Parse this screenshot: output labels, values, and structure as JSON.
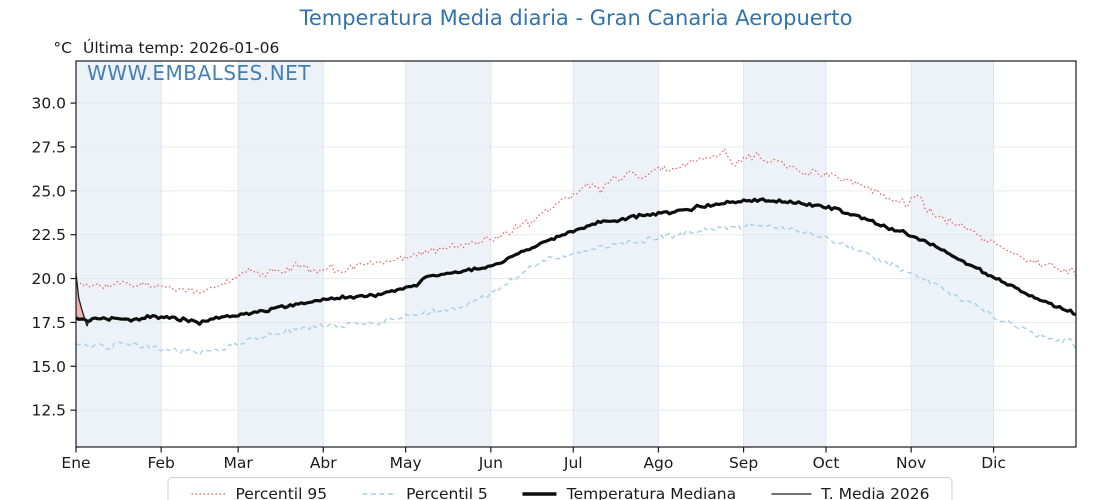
{
  "header": {
    "unit_label": "°C",
    "last_temp_label": "Última temp: 2026-01-06"
  },
  "watermark": "WWW.EMBALSES.NET",
  "colors": {
    "accent_blue": "#3174ad",
    "watermark_blue": "#3a79b4",
    "p95_red": "#e25555",
    "p5_blue": "#a9cfe5",
    "median_black": "#0d0d0d",
    "t2026_black": "#1f1f1f",
    "band_fill": "#edf2f9",
    "grid_horizontal": "#e6e8eb",
    "grid_vertical": "#dfe5ee",
    "frame": "#1a1a1a",
    "fill_above_median": "#efa3a6",
    "fill_below_median": "#5c7fa3",
    "legend_border": "#cfcfcf"
  },
  "chart_data": {
    "type": "line",
    "title": "Temperatura Media diaria - Gran Canaria Aeropuerto",
    "ylabel": "°C",
    "x_axis": {
      "months": [
        "Ene",
        "Feb",
        "Mar",
        "Abr",
        "May",
        "Jun",
        "Jul",
        "Ago",
        "Sep",
        "Oct",
        "Nov",
        "Dic"
      ],
      "days_in_month": [
        31,
        28,
        31,
        30,
        31,
        30,
        31,
        31,
        30,
        31,
        30,
        31
      ],
      "shaded_month_indices": [
        0,
        2,
        4,
        6,
        8,
        10
      ],
      "total_days": 365
    },
    "y_axis": {
      "ticks": [
        12.5,
        15.0,
        17.5,
        20.0,
        22.5,
        25.0,
        27.5,
        30.0
      ],
      "decimals": 1,
      "min": 10.4,
      "max": 32.4,
      "grid": true
    },
    "legend_position": "bottom-center",
    "series": [
      {
        "name": "Percentil 95",
        "color": "#e25555",
        "width": 1.2,
        "dash": "1.6 2.4",
        "opacity": 0.9,
        "noise": 0.28,
        "points": [
          [
            0,
            19.9
          ],
          [
            4,
            19.5
          ],
          [
            8,
            19.7
          ],
          [
            12,
            19.5
          ],
          [
            16,
            19.8
          ],
          [
            20,
            19.6
          ],
          [
            25,
            19.7
          ],
          [
            31,
            19.6
          ],
          [
            38,
            19.4
          ],
          [
            45,
            19.2
          ],
          [
            52,
            19.6
          ],
          [
            59,
            20.0
          ],
          [
            63,
            20.6
          ],
          [
            67,
            20.1
          ],
          [
            71,
            20.5
          ],
          [
            75,
            20.3
          ],
          [
            82,
            20.8
          ],
          [
            87,
            20.4
          ],
          [
            92,
            20.7
          ],
          [
            97,
            20.4
          ],
          [
            103,
            20.8
          ],
          [
            110,
            20.9
          ],
          [
            116,
            21.1
          ],
          [
            120,
            21.3
          ],
          [
            126,
            21.5
          ],
          [
            133,
            21.7
          ],
          [
            140,
            21.9
          ],
          [
            147,
            22.1
          ],
          [
            151,
            22.3
          ],
          [
            156,
            22.6
          ],
          [
            160,
            22.9
          ],
          [
            165,
            23.2
          ],
          [
            169,
            23.5
          ],
          [
            175,
            24.3
          ],
          [
            181,
            24.7
          ],
          [
            186,
            25.3
          ],
          [
            191,
            25.1
          ],
          [
            196,
            25.7
          ],
          [
            202,
            26.0
          ],
          [
            207,
            25.7
          ],
          [
            212,
            26.3
          ],
          [
            217,
            26.1
          ],
          [
            222,
            26.6
          ],
          [
            227,
            26.8
          ],
          [
            232,
            27.0
          ],
          [
            236,
            27.2
          ],
          [
            240,
            26.6
          ],
          [
            244,
            26.9
          ],
          [
            248,
            27.0
          ],
          [
            252,
            26.6
          ],
          [
            256,
            26.7
          ],
          [
            260,
            26.4
          ],
          [
            265,
            26.0
          ],
          [
            269,
            26.1
          ],
          [
            273,
            25.9
          ],
          [
            278,
            25.7
          ],
          [
            283,
            25.4
          ],
          [
            288,
            25.2
          ],
          [
            293,
            24.8
          ],
          [
            298,
            24.5
          ],
          [
            302,
            24.2
          ],
          [
            306,
            24.8
          ],
          [
            310,
            23.9
          ],
          [
            315,
            23.4
          ],
          [
            320,
            23.1
          ],
          [
            324,
            22.9
          ],
          [
            329,
            22.4
          ],
          [
            334,
            22.0
          ],
          [
            339,
            21.6
          ],
          [
            344,
            21.2
          ],
          [
            349,
            21.0
          ],
          [
            354,
            20.8
          ],
          [
            359,
            20.5
          ],
          [
            364,
            20.3
          ]
        ]
      },
      {
        "name": "Percentil 5",
        "color": "#a9cfe5",
        "width": 1.4,
        "dash": "5 3.5",
        "opacity": 1,
        "noise": 0.2,
        "points": [
          [
            0,
            16.3
          ],
          [
            4,
            16.1
          ],
          [
            8,
            16.2
          ],
          [
            12,
            16.0
          ],
          [
            16,
            16.3
          ],
          [
            20,
            16.2
          ],
          [
            25,
            16.1
          ],
          [
            31,
            16.0
          ],
          [
            38,
            15.9
          ],
          [
            45,
            15.8
          ],
          [
            52,
            16.0
          ],
          [
            59,
            16.3
          ],
          [
            65,
            16.6
          ],
          [
            70,
            16.8
          ],
          [
            75,
            17.0
          ],
          [
            82,
            17.2
          ],
          [
            90,
            17.3
          ],
          [
            96,
            17.3
          ],
          [
            103,
            17.5
          ],
          [
            110,
            17.5
          ],
          [
            116,
            17.7
          ],
          [
            120,
            17.9
          ],
          [
            126,
            18.0
          ],
          [
            133,
            18.2
          ],
          [
            140,
            18.4
          ],
          [
            147,
            18.9
          ],
          [
            151,
            19.2
          ],
          [
            156,
            19.7
          ],
          [
            160,
            20.1
          ],
          [
            165,
            20.6
          ],
          [
            169,
            21.0
          ],
          [
            175,
            21.2
          ],
          [
            181,
            21.4
          ],
          [
            186,
            21.6
          ],
          [
            191,
            21.8
          ],
          [
            196,
            21.9
          ],
          [
            202,
            22.1
          ],
          [
            207,
            22.2
          ],
          [
            212,
            22.4
          ],
          [
            217,
            22.5
          ],
          [
            222,
            22.6
          ],
          [
            227,
            22.7
          ],
          [
            232,
            22.8
          ],
          [
            236,
            22.9
          ],
          [
            243,
            23.0
          ],
          [
            248,
            23.1
          ],
          [
            252,
            23.0
          ],
          [
            256,
            22.9
          ],
          [
            260,
            22.8
          ],
          [
            265,
            22.6
          ],
          [
            269,
            22.5
          ],
          [
            273,
            22.3
          ],
          [
            278,
            22.0
          ],
          [
            283,
            21.7
          ],
          [
            288,
            21.4
          ],
          [
            293,
            21.0
          ],
          [
            298,
            20.7
          ],
          [
            304,
            20.3
          ],
          [
            308,
            20.0
          ],
          [
            312,
            19.8
          ],
          [
            316,
            19.4
          ],
          [
            320,
            19.0
          ],
          [
            324,
            18.7
          ],
          [
            329,
            18.4
          ],
          [
            334,
            17.7
          ],
          [
            339,
            17.5
          ],
          [
            344,
            17.2
          ],
          [
            349,
            16.9
          ],
          [
            354,
            16.6
          ],
          [
            359,
            16.4
          ],
          [
            362,
            16.5
          ],
          [
            364,
            15.9
          ]
        ]
      },
      {
        "name": "Temperatura Mediana",
        "color": "#0d0d0d",
        "width": 3.2,
        "dash": "",
        "opacity": 1,
        "noise": 0.12,
        "points": [
          [
            0,
            17.7
          ],
          [
            4,
            17.6
          ],
          [
            8,
            17.8
          ],
          [
            12,
            17.7
          ],
          [
            16,
            17.8
          ],
          [
            20,
            17.6
          ],
          [
            25,
            17.8
          ],
          [
            31,
            17.8
          ],
          [
            38,
            17.7
          ],
          [
            45,
            17.5
          ],
          [
            52,
            17.8
          ],
          [
            59,
            17.9
          ],
          [
            65,
            18.1
          ],
          [
            70,
            18.2
          ],
          [
            75,
            18.4
          ],
          [
            82,
            18.6
          ],
          [
            90,
            18.8
          ],
          [
            96,
            18.9
          ],
          [
            103,
            19.0
          ],
          [
            110,
            19.1
          ],
          [
            116,
            19.3
          ],
          [
            120,
            19.5
          ],
          [
            124,
            19.6
          ],
          [
            127,
            20.1
          ],
          [
            133,
            20.2
          ],
          [
            140,
            20.4
          ],
          [
            147,
            20.6
          ],
          [
            151,
            20.7
          ],
          [
            156,
            21.0
          ],
          [
            160,
            21.4
          ],
          [
            165,
            21.7
          ],
          [
            169,
            22.0
          ],
          [
            175,
            22.4
          ],
          [
            181,
            22.7
          ],
          [
            186,
            23.0
          ],
          [
            191,
            23.3
          ],
          [
            196,
            23.3
          ],
          [
            202,
            23.5
          ],
          [
            207,
            23.6
          ],
          [
            212,
            23.7
          ],
          [
            217,
            23.8
          ],
          [
            222,
            23.9
          ],
          [
            227,
            24.1
          ],
          [
            232,
            24.2
          ],
          [
            236,
            24.3
          ],
          [
            243,
            24.4
          ],
          [
            250,
            24.5
          ],
          [
            256,
            24.4
          ],
          [
            260,
            24.4
          ],
          [
            265,
            24.3
          ],
          [
            269,
            24.2
          ],
          [
            273,
            24.1
          ],
          [
            278,
            23.9
          ],
          [
            283,
            23.6
          ],
          [
            288,
            23.4
          ],
          [
            293,
            23.0
          ],
          [
            298,
            22.8
          ],
          [
            302,
            22.6
          ],
          [
            306,
            22.3
          ],
          [
            311,
            22.0
          ],
          [
            315,
            21.7
          ],
          [
            320,
            21.2
          ],
          [
            324,
            20.9
          ],
          [
            329,
            20.5
          ],
          [
            334,
            20.1
          ],
          [
            339,
            19.7
          ],
          [
            344,
            19.3
          ],
          [
            349,
            18.9
          ],
          [
            354,
            18.6
          ],
          [
            359,
            18.3
          ],
          [
            364,
            18.0
          ]
        ]
      },
      {
        "name": "T. Media 2026",
        "color": "#1f1f1f",
        "width": 1.3,
        "dash": "",
        "opacity": 1,
        "noise": 0,
        "fill_above": "#efa3a6",
        "fill_below": "#5c7fa3",
        "fill_against": "Temperatura Mediana",
        "points": [
          [
            0,
            20.3
          ],
          [
            1,
            18.9
          ],
          [
            2,
            18.3
          ],
          [
            3,
            17.8
          ],
          [
            4,
            17.3
          ],
          [
            5,
            17.7
          ]
        ]
      }
    ]
  }
}
